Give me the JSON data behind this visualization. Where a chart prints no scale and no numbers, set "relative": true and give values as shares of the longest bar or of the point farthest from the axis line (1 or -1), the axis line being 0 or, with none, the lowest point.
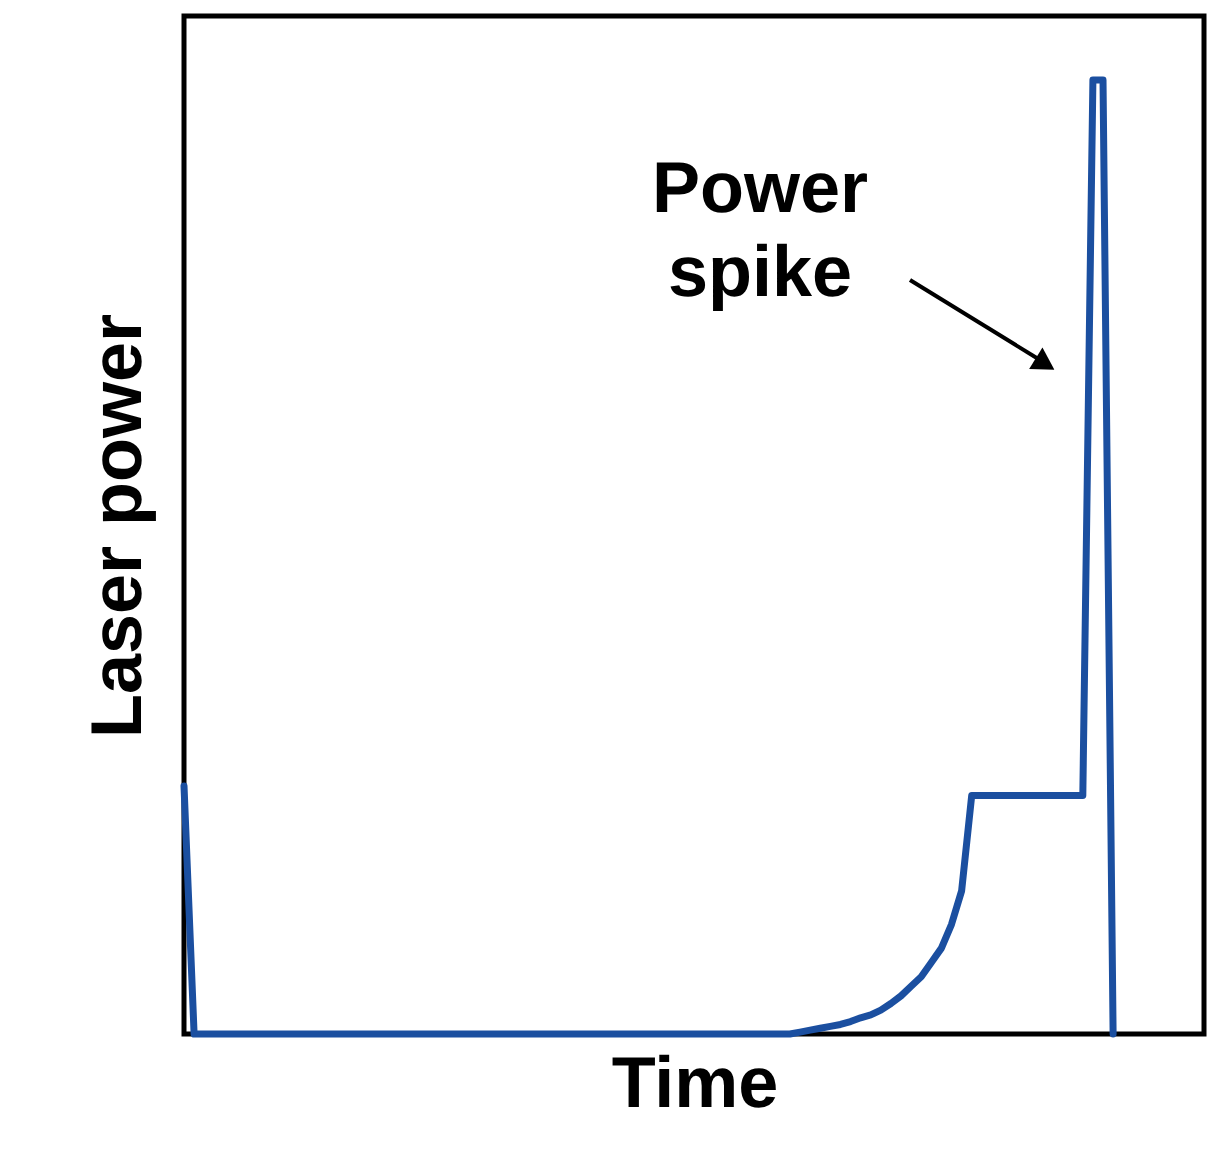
{
  "chart_data": {
    "type": "line",
    "relative": true,
    "tick_labels": false,
    "color": "#1b4fa0",
    "xlabel": "Time",
    "ylabel": "Laser power",
    "annotations": [
      "Power spike"
    ],
    "categories": [
      null,
      null,
      null,
      null,
      null,
      null,
      null,
      null,
      null,
      null,
      null,
      null,
      null,
      null,
      null,
      null,
      null,
      null,
      null,
      null,
      null,
      null,
      null,
      null,
      null,
      null,
      null,
      null,
      null,
      null,
      null,
      null,
      null,
      null,
      null,
      null,
      null,
      null,
      null,
      null,
      null,
      null,
      null,
      null,
      null,
      null,
      null,
      null,
      null,
      null,
      null,
      null,
      null,
      null,
      null,
      null,
      null,
      null,
      null,
      null,
      null,
      null,
      null,
      null,
      null,
      null,
      null,
      null,
      null,
      null,
      null,
      null,
      null,
      null,
      null,
      null,
      null,
      null,
      null,
      null,
      null,
      null,
      null,
      null,
      null,
      null,
      null,
      null,
      null,
      null,
      null,
      null,
      null,
      null,
      null,
      null,
      null,
      null,
      null,
      null,
      null,
      null
    ],
    "values": [
      0.26,
      0,
      0,
      0,
      0,
      0,
      0,
      0,
      0,
      0,
      0,
      0,
      0,
      0,
      0,
      0,
      0,
      0,
      0,
      0,
      0,
      0,
      0,
      0,
      0,
      0,
      0,
      0,
      0,
      0,
      0,
      0,
      0,
      0,
      0,
      0,
      0,
      0,
      0,
      0,
      0,
      0,
      0,
      0,
      0,
      0,
      0,
      0,
      0,
      0,
      0,
      0,
      0,
      0,
      0,
      0,
      0,
      0,
      0,
      0,
      0,
      0.002,
      0.004,
      0.006,
      0.008,
      0.01,
      0.013,
      0.017,
      0.02,
      0.025,
      0.032,
      0.04,
      0.05,
      0.06,
      0.075,
      0.09,
      0.115,
      0.15,
      0.25,
      0.25,
      0.25,
      0.25,
      0.25,
      0.25,
      0.25,
      0.25,
      0.25,
      0.25,
      0.25,
      0.25,
      1,
      1,
      0,
      null,
      null,
      null,
      null,
      null,
      null,
      null,
      null,
      null
    ]
  }
}
